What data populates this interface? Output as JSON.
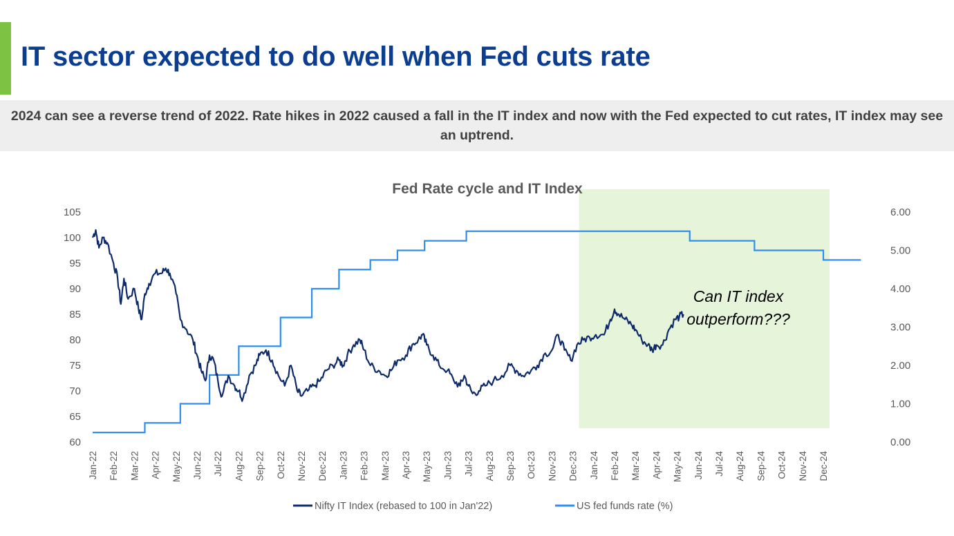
{
  "header": {
    "title": "IT sector expected to do well when Fed cuts rate",
    "subtitle": "2024 can see a reverse trend of 2022. Rate hikes in 2022 caused a fall in the IT index and now with the Fed expected to cut rates, IT index may see an uptrend."
  },
  "colors": {
    "accent": "#7dc242",
    "title": "#0b3d91",
    "it_index": "#0d2a6b",
    "fed_rate": "#2e8ef0",
    "highlight": "#e6f4da"
  },
  "chart_data": {
    "type": "line",
    "title": "Fed Rate cycle and IT Index",
    "categories": [
      "Jan-22",
      "Feb-22",
      "Mar-22",
      "Apr-22",
      "May-22",
      "Jun-22",
      "Jul-22",
      "Aug-22",
      "Sep-22",
      "Oct-22",
      "Nov-22",
      "Dec-22",
      "Jan-23",
      "Feb-23",
      "Mar-23",
      "Apr-23",
      "May-23",
      "Jun-23",
      "Jul-23",
      "Aug-23",
      "Sep-23",
      "Oct-23",
      "Nov-23",
      "Dec-23",
      "Jan-24",
      "Feb-24",
      "Mar-24",
      "Apr-24",
      "May-24",
      "Jun-24",
      "Jul-24",
      "Aug-24",
      "Sep-24",
      "Oct-24",
      "Nov-24",
      "Dec-24"
    ],
    "y_left": {
      "min": 60,
      "max": 105,
      "ticks": [
        60,
        65,
        70,
        75,
        80,
        85,
        90,
        95,
        100,
        105
      ]
    },
    "y_right": {
      "min": 0,
      "max": 6,
      "ticks": [
        "0.00",
        "1.00",
        "2.00",
        "3.00",
        "4.00",
        "5.00",
        "6.00"
      ]
    },
    "highlight": {
      "from_month": 23.3,
      "to_month": 35.3,
      "annotation_lines": [
        "Can IT index",
        "outperform???"
      ]
    },
    "series": [
      {
        "name": "Nifty IT Index (rebased to 100 in Jan'22)",
        "axis": "left",
        "points": [
          [
            0,
            100
          ],
          [
            0.15,
            101.5
          ],
          [
            0.3,
            98
          ],
          [
            0.5,
            100
          ],
          [
            0.7,
            99
          ],
          [
            1,
            95
          ],
          [
            1.2,
            92
          ],
          [
            1.35,
            87
          ],
          [
            1.5,
            92
          ],
          [
            1.7,
            88
          ],
          [
            2,
            90
          ],
          [
            2.2,
            86
          ],
          [
            2.35,
            84
          ],
          [
            2.5,
            89
          ],
          [
            2.7,
            91
          ],
          [
            3,
            93
          ],
          [
            3.3,
            93
          ],
          [
            3.5,
            94
          ],
          [
            3.7,
            93
          ],
          [
            4,
            89
          ],
          [
            4.2,
            84
          ],
          [
            4.5,
            82
          ],
          [
            4.8,
            80
          ],
          [
            5,
            77
          ],
          [
            5.2,
            74
          ],
          [
            5.4,
            72
          ],
          [
            5.6,
            77
          ],
          [
            5.8,
            76
          ],
          [
            6,
            72
          ],
          [
            6.2,
            69
          ],
          [
            6.5,
            73
          ],
          [
            6.8,
            71
          ],
          [
            7,
            70
          ],
          [
            7.2,
            68.5
          ],
          [
            7.5,
            73
          ],
          [
            7.8,
            75
          ],
          [
            8,
            77
          ],
          [
            8.3,
            78
          ],
          [
            8.6,
            76
          ],
          [
            8.9,
            73
          ],
          [
            9.2,
            71
          ],
          [
            9.5,
            75
          ],
          [
            9.8,
            70
          ],
          [
            10,
            69
          ],
          [
            10.3,
            70
          ],
          [
            10.6,
            71
          ],
          [
            10.9,
            72
          ],
          [
            11.2,
            74
          ],
          [
            11.5,
            75
          ],
          [
            11.8,
            76
          ],
          [
            12,
            75
          ],
          [
            12.2,
            77
          ],
          [
            12.5,
            79
          ],
          [
            12.8,
            80
          ],
          [
            13,
            78
          ],
          [
            13.3,
            75
          ],
          [
            13.7,
            74
          ],
          [
            14,
            73
          ],
          [
            14.3,
            74
          ],
          [
            14.6,
            76
          ],
          [
            15,
            77
          ],
          [
            15.3,
            79
          ],
          [
            15.6,
            80
          ],
          [
            15.8,
            81
          ],
          [
            16,
            79
          ],
          [
            16.3,
            77
          ],
          [
            16.6,
            75
          ],
          [
            17,
            74
          ],
          [
            17.3,
            72
          ],
          [
            17.6,
            71
          ],
          [
            17.8,
            73
          ],
          [
            18,
            71
          ],
          [
            18.2,
            69.5
          ],
          [
            18.5,
            70
          ],
          [
            18.8,
            71
          ],
          [
            19.2,
            72
          ],
          [
            19.6,
            73
          ],
          [
            20,
            75
          ],
          [
            20.3,
            74
          ],
          [
            20.6,
            73
          ],
          [
            21,
            74
          ],
          [
            21.3,
            75
          ],
          [
            21.6,
            77
          ],
          [
            22,
            78
          ],
          [
            22.3,
            81
          ],
          [
            22.6,
            78
          ],
          [
            22.9,
            76
          ],
          [
            23.2,
            79
          ],
          [
            23.5,
            80
          ],
          [
            23.8,
            80.5
          ],
          [
            24.1,
            81
          ],
          [
            24.5,
            81
          ],
          [
            24.8,
            84
          ],
          [
            25,
            86
          ],
          [
            25.2,
            85
          ],
          [
            25.5,
            84
          ],
          [
            25.8,
            83
          ],
          [
            26,
            82
          ],
          [
            26.3,
            80
          ],
          [
            26.6,
            79
          ],
          [
            26.8,
            78
          ],
          [
            27,
            79
          ],
          [
            27.3,
            79
          ],
          [
            27.6,
            82
          ],
          [
            27.9,
            84
          ],
          [
            28.1,
            84.5
          ],
          [
            28.3,
            85
          ]
        ]
      },
      {
        "name": "US fed funds rate (%)",
        "axis": "right",
        "steps": [
          [
            0,
            0.25
          ],
          [
            2.5,
            0.5
          ],
          [
            4.2,
            1.0
          ],
          [
            5.6,
            1.75
          ],
          [
            7.0,
            2.5
          ],
          [
            9.0,
            3.25
          ],
          [
            10.5,
            4.0
          ],
          [
            11.8,
            4.5
          ],
          [
            13.3,
            4.75
          ],
          [
            14.6,
            5.0
          ],
          [
            15.9,
            5.25
          ],
          [
            17.9,
            5.5
          ],
          [
            28.6,
            5.25
          ],
          [
            31.7,
            5.0
          ],
          [
            35.0,
            4.75
          ],
          [
            36.8,
            4.75
          ]
        ]
      }
    ],
    "legend": [
      "Nifty IT Index (rebased to 100 in Jan'22)",
      "US fed funds rate (%)"
    ]
  }
}
